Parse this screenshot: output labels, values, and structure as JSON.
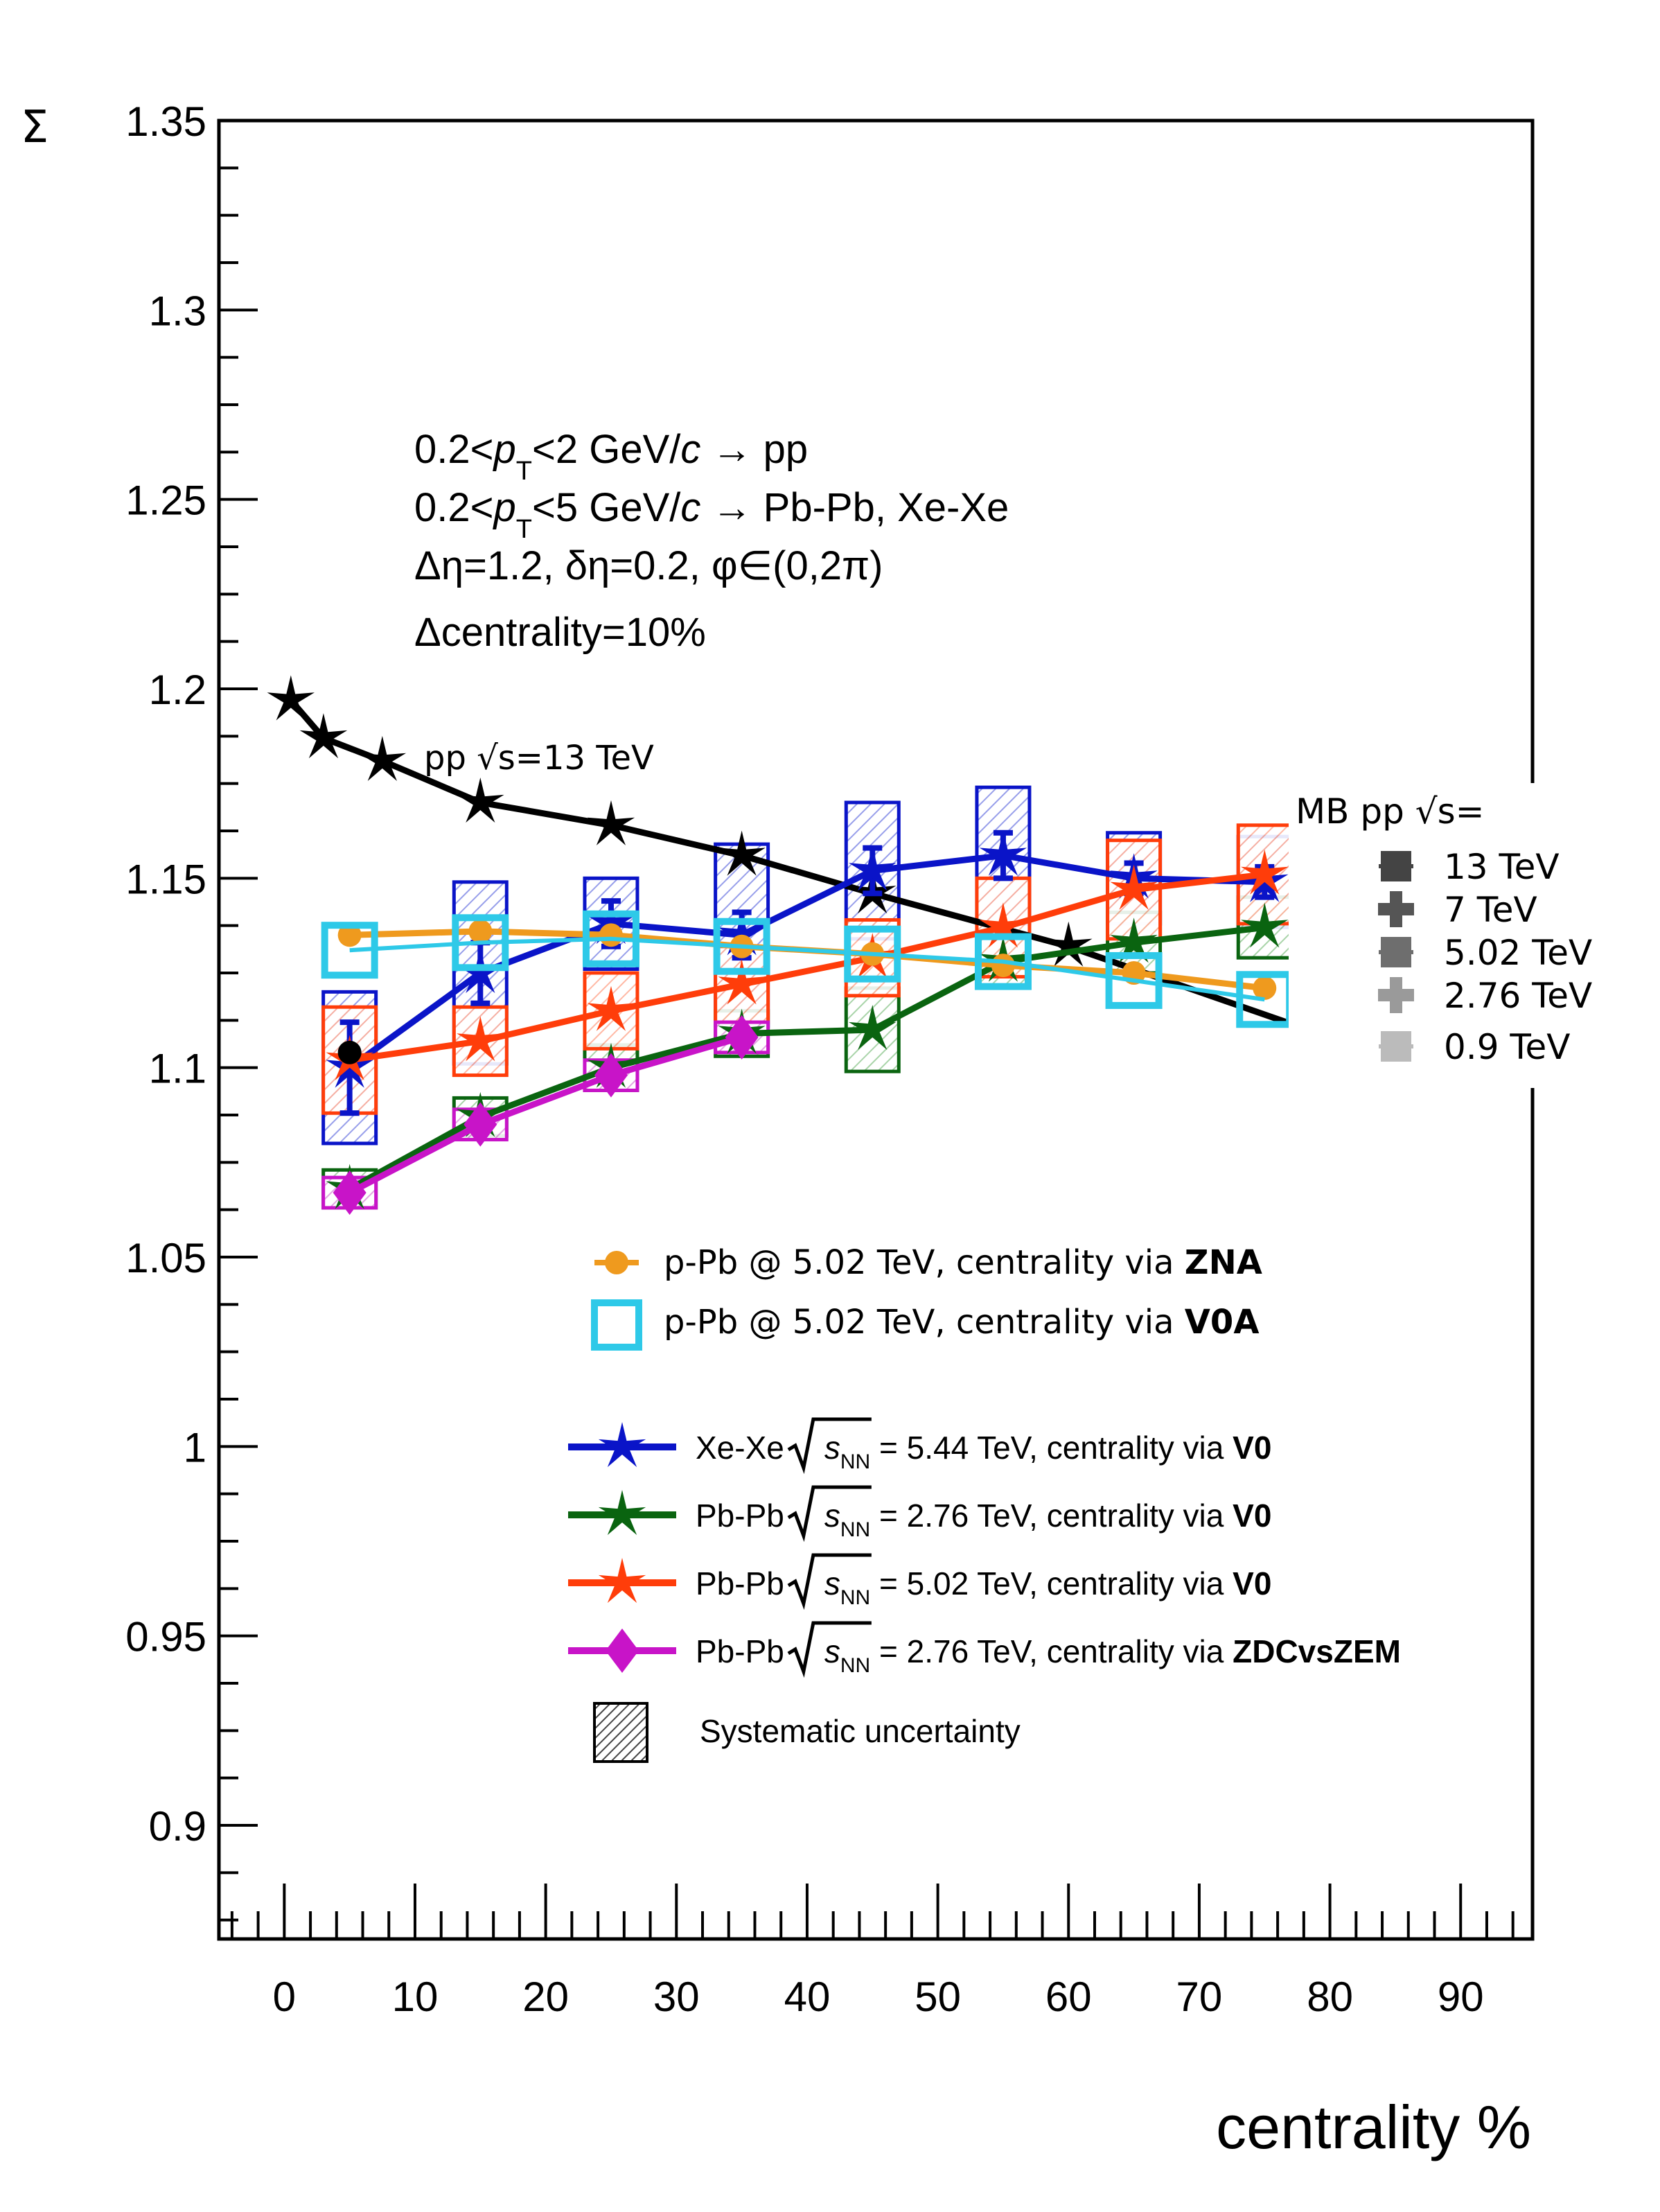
{
  "chart_data": {
    "type": "line",
    "ylabel": "Σ",
    "xlabel": "centrality %",
    "xlim": [
      -5,
      95.5
    ],
    "ylim": [
      0.87,
      1.35
    ],
    "x_ticks": [
      0,
      10,
      20,
      30,
      40,
      50,
      60,
      70,
      80,
      90
    ],
    "y_ticks": [
      0.9,
      0.95,
      1,
      1.05,
      1.1,
      1.15,
      1.2,
      1.25,
      1.3,
      1.35
    ],
    "y_tick_labels": [
      "0.9",
      "0.95",
      "1",
      "1.05",
      "1.1",
      "1.15",
      "1.2",
      "1.25",
      "1.3",
      "1.35"
    ],
    "annotations": [
      "0.2<p_T<2 GeV/c → pp",
      "0.2<p_T<5 GeV/c → Pb-Pb, Xe-Xe",
      "Δη=1.2, δη=0.2, φ∈(0,2π)",
      "Δcentrality=10%"
    ],
    "annotation_parts": {
      "l1": {
        "a": "0.2<",
        "p": "p",
        "sub": "T",
        "b": "<2 GeV/",
        "c": "c",
        "tail": " → pp"
      },
      "l2": {
        "a": "0.2<",
        "p": "p",
        "sub": "T",
        "b": "<5 GeV/",
        "c": "c",
        "tail": " → Pb-Pb, Xe-Xe"
      },
      "l3": "Δη=1.2, δη=0.2, φ∈(0,2π)",
      "l4": "Δcentrality=10%"
    },
    "pp_label": "pp √s=13 TeV",
    "mb_pp": {
      "title": "MB pp √s=",
      "entries": [
        {
          "label": "13 TeV",
          "color": "#444444",
          "marker": "square"
        },
        {
          "label": "7 TeV",
          "color": "#555555",
          "marker": "cross"
        },
        {
          "label": "5.02 TeV",
          "color": "#6e6e6e",
          "marker": "square"
        },
        {
          "label": "2.76 TeV",
          "color": "#9a9a9a",
          "marker": "cross"
        },
        {
          "label": "0.9 TeV",
          "color": "#bbbbbb",
          "marker": "square"
        }
      ]
    },
    "legend": {
      "ppb_zna": {
        "text": "p-Pb @ 5.02 TeV, centrality via ",
        "bold": "ZNA"
      },
      "ppb_v0a": {
        "text": "p-Pb @ 5.02 TeV, centrality via ",
        "bold": "V0A"
      },
      "xexe": {
        "sys": "Xe-Xe",
        "energy": " = 5.44 TeV, centrality via ",
        "bold": "V0"
      },
      "pbpb276": {
        "sys": "Pb-Pb",
        "energy": " = 2.76 TeV, centrality via ",
        "bold": "V0"
      },
      "pbpb502": {
        "sys": "Pb-Pb",
        "energy": " = 5.02 TeV, centrality via ",
        "bold": "V0"
      },
      "pbpbzdc": {
        "sys": "Pb-Pb",
        "energy": " = 2.76 TeV, centrality via ",
        "bold": "ZDCvsZEM"
      },
      "sqrt_s": "s",
      "nn_sub": "NN",
      "systematic": "Systematic uncertainty"
    },
    "series": [
      {
        "name": "pp √s=13 TeV",
        "color": "#000000",
        "marker": "star",
        "x": [
          0.5,
          3,
          7.5,
          15,
          25,
          35,
          45,
          60,
          85
        ],
        "values": [
          1.197,
          1.187,
          1.181,
          1.17,
          1.164,
          1.156,
          1.146,
          1.132,
          1.102
        ]
      },
      {
        "name": "p-Pb @ 5.02 TeV, centrality via ZNA",
        "color": "#ef9a1e",
        "marker": "circle",
        "x": [
          5,
          15,
          25,
          35,
          45,
          55,
          65,
          75
        ],
        "values": [
          1.135,
          1.136,
          1.135,
          1.132,
          1.13,
          1.127,
          1.125,
          1.121
        ]
      },
      {
        "name": "p-Pb @ 5.02 TeV, centrality via V0A",
        "color": "#2ec9e8",
        "marker": "open-square",
        "x": [
          5,
          15,
          25,
          35,
          45,
          55,
          65,
          75
        ],
        "values": [
          1.131,
          1.133,
          1.134,
          1.132,
          1.13,
          1.128,
          1.123,
          1.118
        ]
      },
      {
        "name": "Xe-Xe √sNN = 5.44 TeV, centrality via V0",
        "color": "#0a14c8",
        "marker": "star",
        "x": [
          5,
          15,
          25,
          35,
          45,
          55,
          65,
          75
        ],
        "values": [
          1.1,
          1.125,
          1.138,
          1.135,
          1.152,
          1.156,
          1.15,
          1.149
        ],
        "stat_err": [
          0.012,
          0.008,
          0.006,
          0.006,
          0.006,
          0.006,
          0.004,
          0.004
        ],
        "sys_err": [
          0.02,
          0.024,
          0.012,
          0.024,
          0.018,
          0.018,
          0.012,
          0.012
        ]
      },
      {
        "name": "Pb-Pb √sNN = 2.76 TeV, centrality via V0",
        "color": "#0a6410",
        "marker": "star",
        "x": [
          5,
          15,
          25,
          35,
          45,
          55,
          65,
          75
        ],
        "values": [
          1.068,
          1.087,
          1.1,
          1.109,
          1.11,
          1.128,
          1.133,
          1.137
        ],
        "sys_err": [
          0.005,
          0.005,
          0.006,
          0.006,
          0.011,
          0.007,
          0.008,
          0.008
        ]
      },
      {
        "name": "Pb-Pb √sNN = 5.02 TeV, centrality via V0",
        "color": "#ff3d0a",
        "marker": "star",
        "x": [
          5,
          15,
          25,
          35,
          45,
          55,
          65,
          75
        ],
        "values": [
          1.102,
          1.107,
          1.115,
          1.122,
          1.129,
          1.137,
          1.147,
          1.151
        ],
        "sys_err": [
          0.014,
          0.009,
          0.01,
          0.01,
          0.01,
          0.013,
          0.013,
          0.013
        ]
      },
      {
        "name": "Pb-Pb √sNN = 2.76 TeV, centrality via ZDCvsZEM",
        "color": "#c814c8",
        "marker": "diamond",
        "x": [
          5,
          15,
          25,
          35
        ],
        "values": [
          1.067,
          1.085,
          1.098,
          1.108
        ],
        "sys_err": [
          0.004,
          0.004,
          0.004,
          0.004
        ]
      }
    ],
    "extra_point": {
      "x": 5,
      "value": 1.104,
      "color": "#000000"
    },
    "grid": false,
    "legend_position": "bottom-center"
  }
}
